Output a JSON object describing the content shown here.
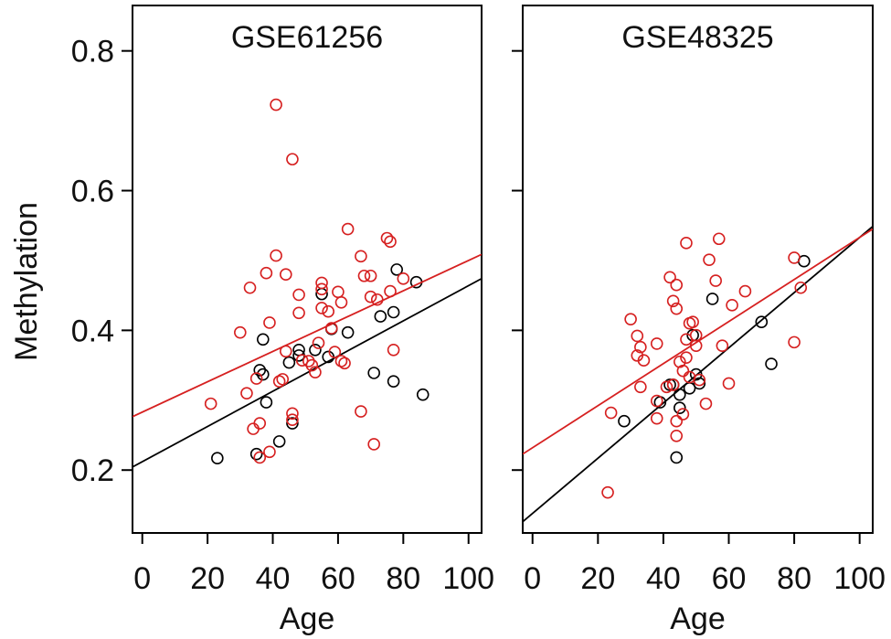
{
  "colors": {
    "control": "#000000",
    "case": "#d62020"
  },
  "chart_data": [
    {
      "type": "scatter",
      "title": "GSE61256",
      "xlabel": "Age",
      "ylabel": "Methylation",
      "xlim": [
        -3,
        104
      ],
      "ylim": [
        0.11,
        0.865
      ],
      "xticks": [
        "0",
        "20",
        "40",
        "60",
        "80",
        "100"
      ],
      "yticks": [
        "0.2",
        "0.4",
        "0.6",
        "0.8"
      ],
      "series": [
        {
          "color": "#000000",
          "points": [
            [
              23,
              0.217
            ],
            [
              35,
              0.223
            ],
            [
              36,
              0.343
            ],
            [
              37,
              0.337
            ],
            [
              37,
              0.387
            ],
            [
              38,
              0.297
            ],
            [
              42,
              0.241
            ],
            [
              45,
              0.354
            ],
            [
              46,
              0.267
            ],
            [
              48,
              0.372
            ],
            [
              48,
              0.364
            ],
            [
              53,
              0.372
            ],
            [
              55,
              0.452
            ],
            [
              57,
              0.362
            ],
            [
              58,
              0.402
            ],
            [
              63,
              0.397
            ],
            [
              71,
              0.339
            ],
            [
              73,
              0.42
            ],
            [
              77,
              0.426
            ],
            [
              78,
              0.487
            ],
            [
              77,
              0.327
            ],
            [
              84,
              0.469
            ],
            [
              86,
              0.308
            ]
          ],
          "fit": {
            "intercept": 0.212,
            "slope": 0.00252
          }
        },
        {
          "color": "#d62020",
          "points": [
            [
              21,
              0.295
            ],
            [
              30,
              0.397
            ],
            [
              32,
              0.31
            ],
            [
              33,
              0.461
            ],
            [
              34,
              0.259
            ],
            [
              35,
              0.331
            ],
            [
              36,
              0.267
            ],
            [
              36,
              0.218
            ],
            [
              38,
              0.482
            ],
            [
              39,
              0.411
            ],
            [
              39,
              0.226
            ],
            [
              41,
              0.723
            ],
            [
              41,
              0.507
            ],
            [
              42,
              0.327
            ],
            [
              43,
              0.33
            ],
            [
              44,
              0.48
            ],
            [
              44,
              0.37
            ],
            [
              46,
              0.645
            ],
            [
              46,
              0.281
            ],
            [
              46,
              0.272
            ],
            [
              48,
              0.451
            ],
            [
              48,
              0.425
            ],
            [
              49,
              0.357
            ],
            [
              51,
              0.356
            ],
            [
              52,
              0.35
            ],
            [
              53,
              0.34
            ],
            [
              54,
              0.382
            ],
            [
              55,
              0.468
            ],
            [
              55,
              0.459
            ],
            [
              55,
              0.432
            ],
            [
              57,
              0.427
            ],
            [
              58,
              0.403
            ],
            [
              59,
              0.369
            ],
            [
              60,
              0.455
            ],
            [
              61,
              0.44
            ],
            [
              61,
              0.356
            ],
            [
              62,
              0.353
            ],
            [
              63,
              0.545
            ],
            [
              67,
              0.506
            ],
            [
              67,
              0.284
            ],
            [
              68,
              0.478
            ],
            [
              70,
              0.448
            ],
            [
              70,
              0.478
            ],
            [
              71,
              0.237
            ],
            [
              72,
              0.444
            ],
            [
              75,
              0.532
            ],
            [
              76,
              0.527
            ],
            [
              76,
              0.456
            ],
            [
              77,
              0.372
            ],
            [
              80,
              0.474
            ]
          ],
          "fit": {
            "intercept": 0.283,
            "slope": 0.00217
          }
        }
      ]
    },
    {
      "type": "scatter",
      "title": "GSE48325",
      "xlabel": "Age",
      "ylabel": "",
      "xlim": [
        -3,
        104
      ],
      "ylim": [
        0.11,
        0.865
      ],
      "xticks": [
        "0",
        "20",
        "40",
        "60",
        "80",
        "100"
      ],
      "yticks": [],
      "series": [
        {
          "color": "#000000",
          "points": [
            [
              28,
              0.27
            ],
            [
              39,
              0.297
            ],
            [
              42,
              0.322
            ],
            [
              43,
              0.322
            ],
            [
              44,
              0.218
            ],
            [
              45,
              0.289
            ],
            [
              45,
              0.308
            ],
            [
              48,
              0.317
            ],
            [
              49,
              0.393
            ],
            [
              50,
              0.337
            ],
            [
              51,
              0.324
            ],
            [
              55,
              0.445
            ],
            [
              70,
              0.412
            ],
            [
              73,
              0.352
            ],
            [
              83,
              0.499
            ]
          ],
          "fit": {
            "intercept": 0.138,
            "slope": 0.00395
          }
        },
        {
          "color": "#d62020",
          "points": [
            [
              23,
              0.168
            ],
            [
              24,
              0.282
            ],
            [
              30,
              0.416
            ],
            [
              32,
              0.392
            ],
            [
              32,
              0.364
            ],
            [
              33,
              0.376
            ],
            [
              33,
              0.319
            ],
            [
              34,
              0.357
            ],
            [
              38,
              0.299
            ],
            [
              38,
              0.381
            ],
            [
              38,
              0.274
            ],
            [
              41,
              0.319
            ],
            [
              42,
              0.476
            ],
            [
              43,
              0.442
            ],
            [
              43,
              0.322
            ],
            [
              44,
              0.465
            ],
            [
              44,
              0.431
            ],
            [
              44,
              0.27
            ],
            [
              44,
              0.249
            ],
            [
              45,
              0.355
            ],
            [
              46,
              0.342
            ],
            [
              46,
              0.28
            ],
            [
              47,
              0.525
            ],
            [
              47,
              0.387
            ],
            [
              47,
              0.361
            ],
            [
              48,
              0.41
            ],
            [
              48,
              0.333
            ],
            [
              49,
              0.412
            ],
            [
              50,
              0.393
            ],
            [
              50,
              0.378
            ],
            [
              51,
              0.329
            ],
            [
              53,
              0.295
            ],
            [
              54,
              0.501
            ],
            [
              56,
              0.471
            ],
            [
              57,
              0.531
            ],
            [
              58,
              0.378
            ],
            [
              60,
              0.324
            ],
            [
              61,
              0.436
            ],
            [
              65,
              0.456
            ],
            [
              80,
              0.504
            ],
            [
              80,
              0.383
            ],
            [
              82,
              0.461
            ]
          ],
          "fit": {
            "intercept": 0.232,
            "slope": 0.00301
          }
        }
      ]
    }
  ]
}
